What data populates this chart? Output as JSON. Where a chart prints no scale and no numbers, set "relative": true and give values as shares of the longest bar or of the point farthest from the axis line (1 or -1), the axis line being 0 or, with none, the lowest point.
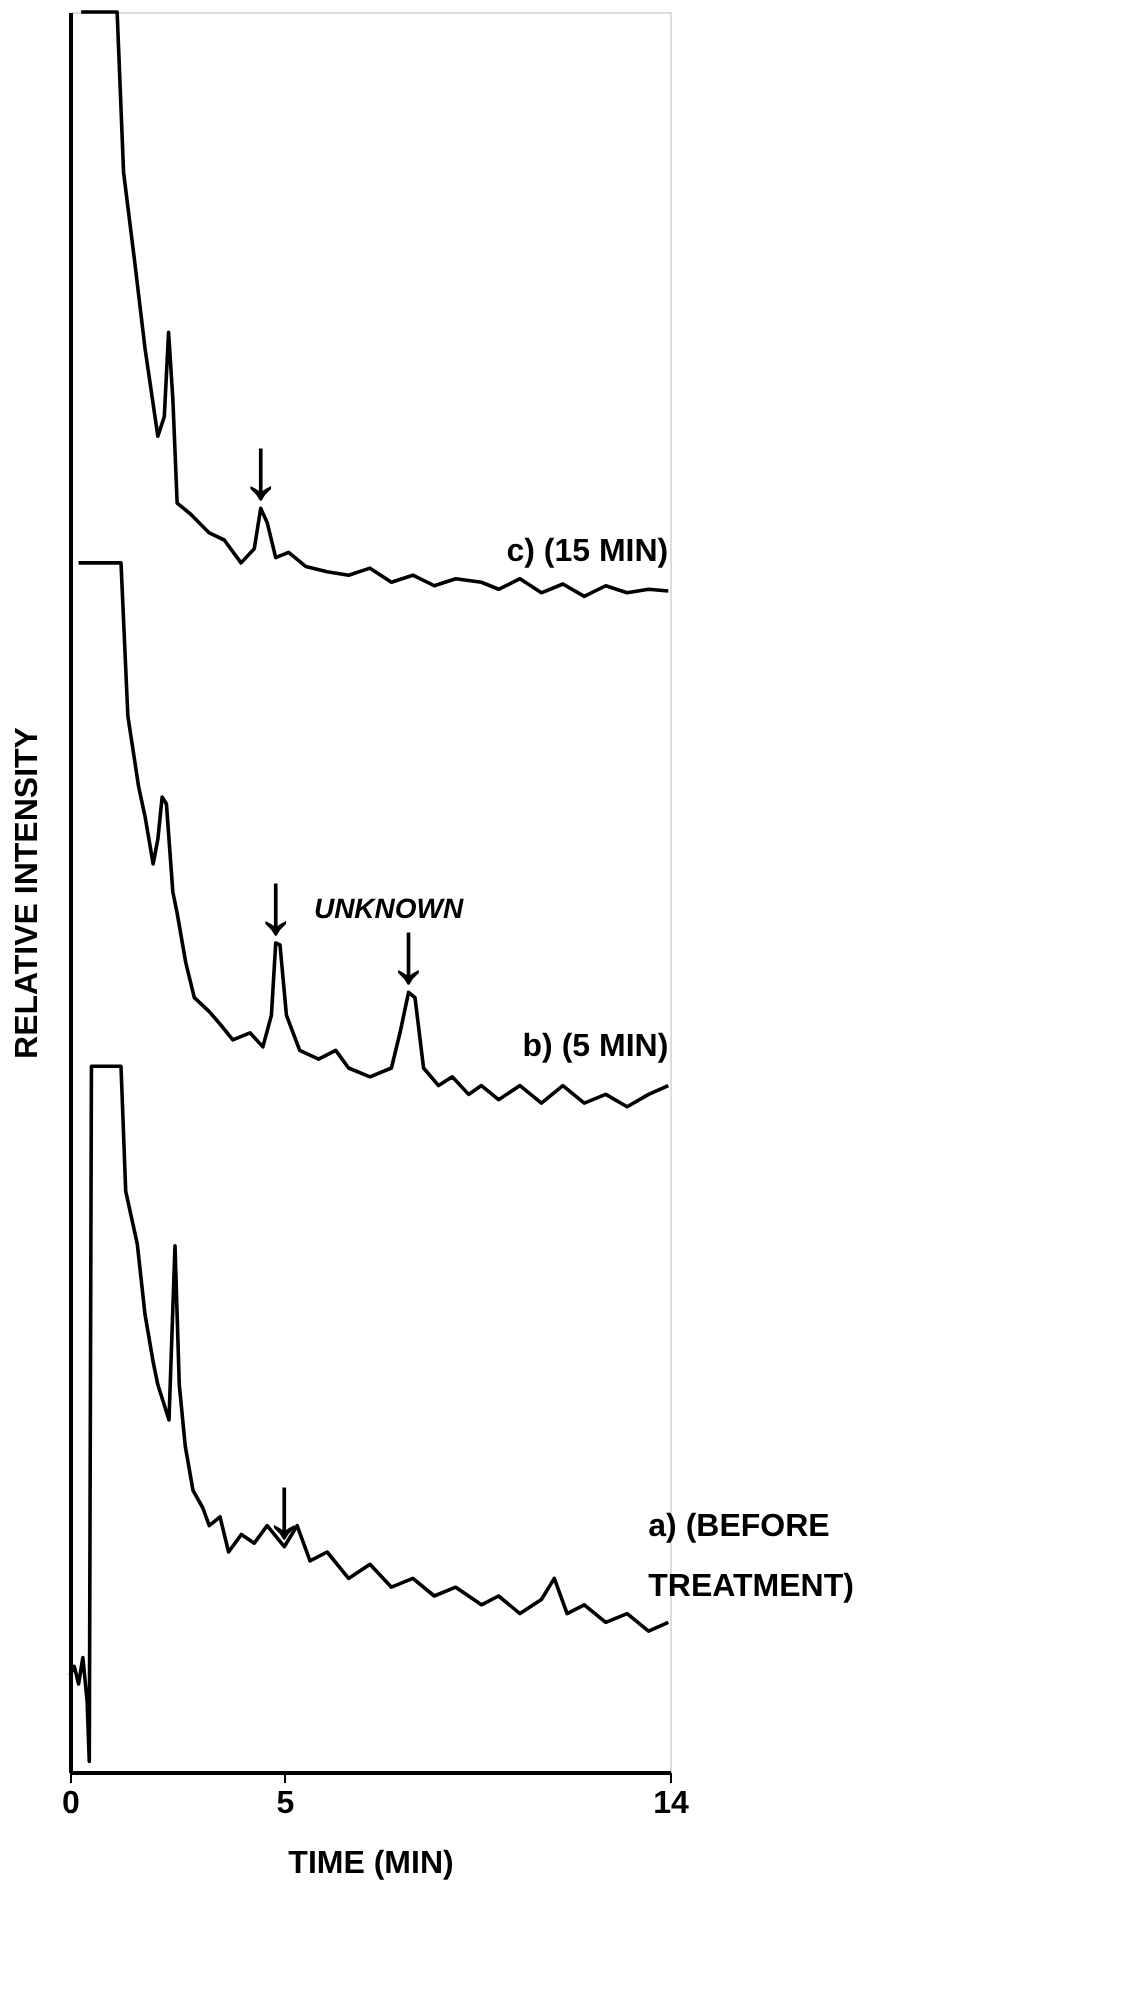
{
  "chart_data": {
    "type": "line",
    "relative": true,
    "xlabel": "TIME (MIN)",
    "ylabel": "RELATIVE INTENSITY",
    "xlim": [
      0,
      14
    ],
    "xticks": [
      0,
      5,
      14
    ],
    "grid": false,
    "series": [
      {
        "name": "a) (BEFORE\nTREATMENT)",
        "color": "#000000",
        "x": [
          0,
          0.1,
          0.2,
          0.3,
          0.4,
          0.45,
          0.5,
          1.0,
          1.19,
          1.3,
          1.57,
          1.75,
          1.94,
          2.05,
          2.31,
          2.45,
          2.55,
          2.69,
          2.87,
          3.1,
          3.25,
          3.5,
          3.7,
          4.0,
          4.3,
          4.6,
          5.0,
          5.3,
          5.6,
          6.0,
          6.5,
          7.0,
          7.5,
          8.0,
          8.5,
          9.0,
          9.6,
          10.0,
          10.5,
          11.0,
          11.3,
          11.6,
          12.0,
          12.5,
          13.0,
          13.5,
          13.96
        ],
        "values": [
          0.055,
          0.06,
          0.05,
          0.065,
          0.04,
          0.006,
          0.401,
          0.401,
          0.401,
          0.33,
          0.3,
          0.26,
          0.233,
          0.22,
          0.2,
          0.299,
          0.22,
          0.185,
          0.16,
          0.15,
          0.14,
          0.145,
          0.125,
          0.135,
          0.13,
          0.14,
          0.128,
          0.14,
          0.12,
          0.125,
          0.11,
          0.118,
          0.105,
          0.11,
          0.1,
          0.105,
          0.095,
          0.1,
          0.09,
          0.098,
          0.11,
          0.09,
          0.095,
          0.085,
          0.09,
          0.08,
          0.085
        ]
      },
      {
        "name": "b) (5 MIN)",
        "color": "#000000",
        "x": [
          0.2,
          1.19,
          1.35,
          1.6,
          1.75,
          1.94,
          2.05,
          2.15,
          2.25,
          2.4,
          2.5,
          2.7,
          2.9,
          3.25,
          3.5,
          3.8,
          4.2,
          4.5,
          4.7,
          4.8,
          4.9,
          5.05,
          5.36,
          5.8,
          6.2,
          6.5,
          7.0,
          7.5,
          7.7,
          7.9,
          8.05,
          8.25,
          8.6,
          8.92,
          9.3,
          9.6,
          10.0,
          10.5,
          11.0,
          11.5,
          12.0,
          12.5,
          13.0,
          13.5,
          13.96
        ],
        "values": [
          0.687,
          0.687,
          0.6,
          0.56,
          0.543,
          0.516,
          0.53,
          0.554,
          0.55,
          0.5,
          0.488,
          0.46,
          0.44,
          0.432,
          0.425,
          0.416,
          0.42,
          0.412,
          0.43,
          0.471,
          0.47,
          0.43,
          0.41,
          0.405,
          0.41,
          0.4,
          0.395,
          0.4,
          0.42,
          0.443,
          0.44,
          0.4,
          0.39,
          0.395,
          0.385,
          0.39,
          0.382,
          0.39,
          0.38,
          0.39,
          0.38,
          0.385,
          0.378,
          0.385,
          0.39
        ]
      },
      {
        "name": "c) (15 MIN)",
        "color": "#000000",
        "x": [
          0.26,
          1.1,
          1.25,
          1.5,
          1.75,
          2.05,
          2.2,
          2.3,
          2.4,
          2.5,
          2.8,
          3.25,
          3.6,
          3.99,
          4.3,
          4.45,
          4.6,
          4.8,
          5.1,
          5.5,
          6.0,
          6.5,
          7.0,
          7.5,
          8.0,
          8.5,
          9.0,
          9.6,
          10.0,
          10.5,
          11.0,
          11.5,
          12.0,
          12.5,
          13.0,
          13.5,
          13.96
        ],
        "values": [
          1.0,
          1.0,
          0.909,
          0.86,
          0.809,
          0.759,
          0.77,
          0.818,
          0.78,
          0.721,
          0.715,
          0.704,
          0.7,
          0.687,
          0.695,
          0.718,
          0.71,
          0.69,
          0.693,
          0.685,
          0.682,
          0.68,
          0.684,
          0.676,
          0.68,
          0.674,
          0.678,
          0.676,
          0.672,
          0.678,
          0.67,
          0.675,
          0.668,
          0.674,
          0.67,
          0.672,
          0.671
        ]
      }
    ],
    "annotations": [
      {
        "text": "↓",
        "x": 4.45,
        "y": 0.718
      },
      {
        "text": "↓",
        "x": 4.8,
        "y": 0.471
      },
      {
        "text": "↓",
        "x": 7.9,
        "y": 0.443
      },
      {
        "text": "↓",
        "x": 5.0,
        "y": 0.128
      },
      {
        "text": "UNKNOWN",
        "x": 7.9,
        "y": 0.443
      }
    ]
  }
}
